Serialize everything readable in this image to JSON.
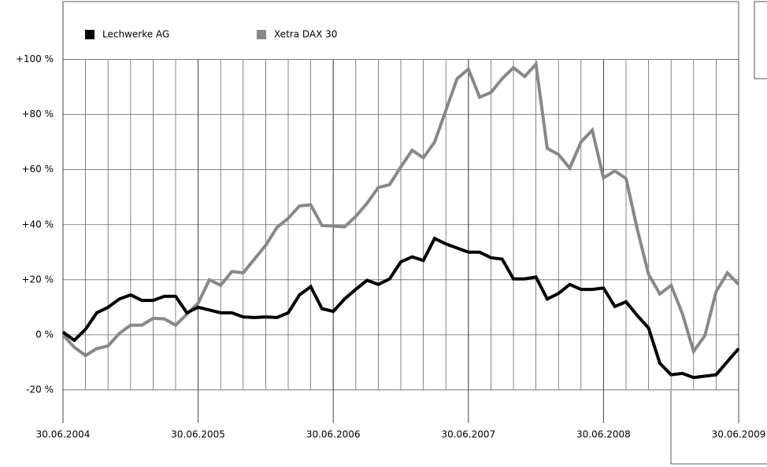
{
  "chart_data": {
    "type": "line",
    "x": [
      0,
      1,
      2,
      3,
      4,
      5,
      6,
      7,
      8,
      9,
      10,
      11,
      12,
      13,
      14,
      15,
      16,
      17,
      18,
      19,
      20,
      21,
      22,
      23,
      24,
      25,
      26,
      27,
      28,
      29,
      30,
      31,
      32,
      33,
      34,
      35,
      36,
      37,
      38,
      39,
      40,
      41,
      42,
      43,
      44,
      45,
      46,
      47,
      48,
      49,
      50,
      51,
      52,
      53,
      54,
      55,
      56,
      57,
      58,
      59,
      60
    ],
    "xlim": [
      0,
      60
    ],
    "xticks": [
      {
        "value": 0,
        "label": "30.06.2004"
      },
      {
        "value": 12,
        "label": "30.06.2005"
      },
      {
        "value": 24,
        "label": "30.06.2006"
      },
      {
        "value": 36,
        "label": "30.06.2007"
      },
      {
        "value": 48,
        "label": "30.06.2008"
      },
      {
        "value": 60,
        "label": "30.06.2009"
      }
    ],
    "xminorticks": [
      0,
      2,
      4,
      6,
      8,
      10,
      12,
      14,
      16,
      18,
      20,
      22,
      24,
      26,
      28,
      30,
      32,
      34,
      36,
      38,
      40,
      42,
      44,
      46,
      48,
      50,
      52,
      54,
      56,
      58,
      60
    ],
    "ylim": [
      -32,
      121
    ],
    "yticks": [
      {
        "value": -20,
        "label": "-20 %"
      },
      {
        "value": 0,
        "label": "0 %"
      },
      {
        "value": 20,
        "label": "+20 %"
      },
      {
        "value": 40,
        "label": "+40 %"
      },
      {
        "value": 60,
        "label": "+60 %"
      },
      {
        "value": 80,
        "label": "+80 %"
      },
      {
        "value": 100,
        "label": "+100 %"
      }
    ],
    "grid": true,
    "series": [
      {
        "name": "Xetra DAX 30",
        "color": "#888888",
        "values": [
          0,
          -4.5,
          -7.5,
          -5,
          -4,
          0.5,
          3.5,
          3.5,
          6,
          5.8,
          3.5,
          7.5,
          11.5,
          20,
          18,
          23,
          22.5,
          27.5,
          32.5,
          39,
          42.3,
          46.8,
          47.2,
          39.7,
          39.5,
          39.2,
          43,
          47.8,
          53.5,
          54.5,
          61,
          67,
          64.3,
          70,
          81.5,
          93,
          96.5,
          86.3,
          88,
          93,
          97,
          93.8,
          98.3,
          67.7,
          65.5,
          60.5,
          70,
          74.3,
          57,
          59.5,
          56.8,
          38.3,
          22,
          14.8,
          18,
          7.7,
          -6,
          -0.3,
          15.7,
          22.5,
          18.3
        ]
      },
      {
        "name": "Lechwerke AG",
        "color": "#000000",
        "values": [
          1,
          -2,
          2,
          8,
          10,
          13,
          14.5,
          12.5,
          12.5,
          14,
          14,
          8,
          10,
          9,
          8,
          8,
          6.5,
          6.3,
          6.5,
          6.3,
          8,
          14.5,
          17.5,
          9.5,
          8.5,
          13,
          16.5,
          19.8,
          18.3,
          20.3,
          26.5,
          28.3,
          27,
          35,
          33,
          31.5,
          30,
          30,
          28,
          27.5,
          20.3,
          20.3,
          21,
          13,
          15,
          18.3,
          16.5,
          16.5,
          17,
          10.3,
          12,
          7,
          2.5,
          -10.3,
          -14.5,
          -14,
          -15.5,
          -15,
          -14.5,
          -9.7,
          -5
        ]
      }
    ],
    "legend": "top-left"
  }
}
